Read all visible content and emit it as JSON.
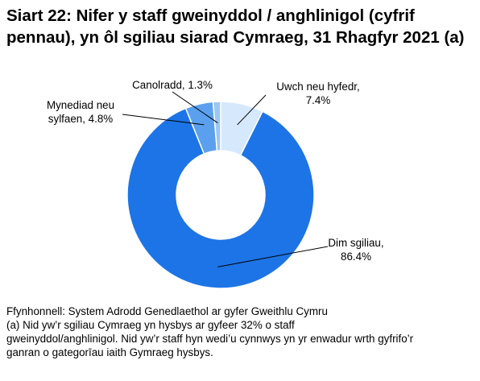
{
  "title": "Siart 22: Nifer y staff gweinyddol / anghlinigol (cyfrif pennau), yn ôl sgiliau siarad Cymraeg, 31 Rhagfyr 2021 (a)",
  "chart_data": {
    "type": "pie",
    "variant": "donut",
    "title": "Siart 22: Nifer y staff gweinyddol / anghlinigol (cyfrif pennau), yn ôl sgiliau siarad Cymraeg, 31 Rhagfyr 2021 (a)",
    "slices": [
      {
        "name": "Uwch neu hyfedr",
        "value": 7.4,
        "color": "#d6e8fb",
        "label_lines": [
          "Uwch neu hyfedr,",
          "7.4%"
        ]
      },
      {
        "name": "Dim sgiliau",
        "value": 86.4,
        "color": "#1d74e6",
        "label_lines": [
          "Dim sgiliau,",
          "86.4%"
        ]
      },
      {
        "name": "Mynediad neu sylfaen",
        "value": 4.8,
        "color": "#5aa0ee",
        "label_lines": [
          "Mynediad neu",
          "sylfaen, 4.8%"
        ]
      },
      {
        "name": "Canolradd",
        "value": 1.3,
        "color": "#9cc6f4",
        "label_lines": [
          "Canolradd, 1.3%"
        ]
      }
    ],
    "unit": "%"
  },
  "notes": {
    "source": "Ffynhonnell: System Adrodd Genedlaethol ar gyfer Gweithlu Cymru",
    "footnote_lines": [
      "(a) Nid yw’r sgiliau Cymraeg yn hysbys ar gyfeer 32% o staff",
      "gweinyddol/anghlinigol. Nid yw’r staff hyn wedi’u cynnwys yn yr enwadur wrth gyfrifo’r",
      "ganran o gategorīau iaith Gymraeg hysbys."
    ]
  }
}
